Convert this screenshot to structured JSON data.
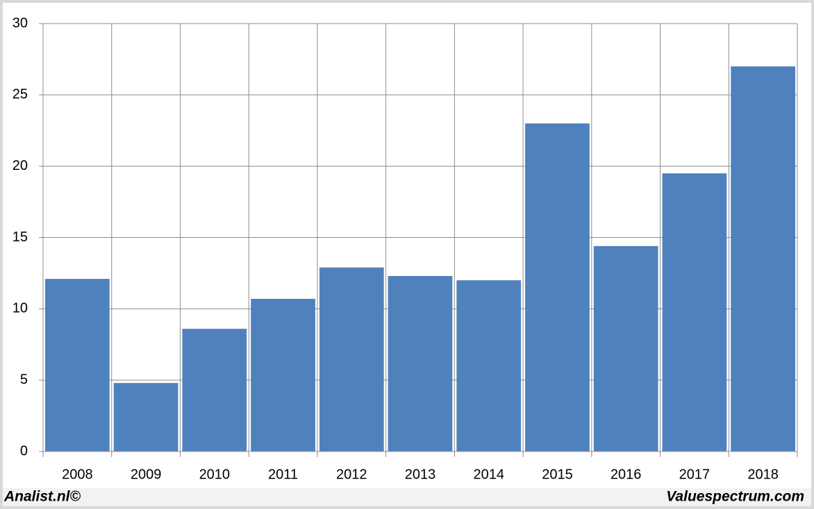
{
  "chart_data": {
    "type": "bar",
    "categories": [
      "2008",
      "2009",
      "2010",
      "2011",
      "2012",
      "2013",
      "2014",
      "2015",
      "2016",
      "2017",
      "2018"
    ],
    "values": [
      12.1,
      4.8,
      8.6,
      10.7,
      12.9,
      12.3,
      12.0,
      23.0,
      14.4,
      19.5,
      27.0
    ],
    "color": "#4f81bd",
    "ylim": [
      0,
      30
    ],
    "yticks": [
      0,
      5,
      10,
      15,
      20,
      25,
      30
    ],
    "grid": true
  },
  "footer": {
    "left": "Analist.nl©",
    "right": "Valuespectrum.com"
  }
}
